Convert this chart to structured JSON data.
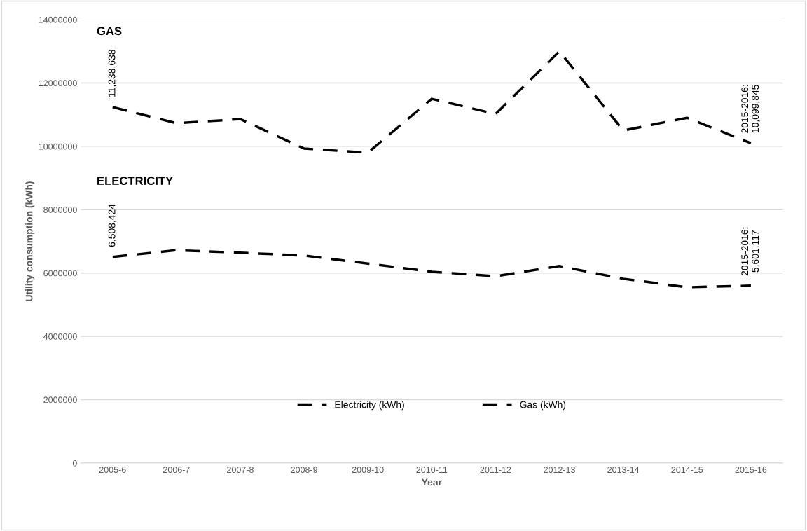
{
  "chart_data": {
    "type": "line",
    "xlabel": "Year",
    "ylabel": "Utility consumption (kWh)",
    "categories": [
      "2005-6",
      "2006-7",
      "2007-8",
      "2008-9",
      "2009-10",
      "2010-11",
      "2011-12",
      "2012-13",
      "2013-14",
      "2014-15",
      "2015-16"
    ],
    "series": [
      {
        "name": "Electricity (kWh)",
        "color": "#000000",
        "values": [
          6508424,
          6720000,
          6640000,
          6550000,
          6300000,
          6040000,
          5900000,
          6220000,
          5820000,
          5550000,
          5601117
        ]
      },
      {
        "name": "Gas (kWh)",
        "color": "#000000",
        "values": [
          11238638,
          10730000,
          10860000,
          9930000,
          9800000,
          11500000,
          11020000,
          13000000,
          10500000,
          10900000,
          10099845
        ]
      }
    ],
    "ylim": [
      0,
      14000000
    ],
    "yticks": [
      0,
      2000000,
      4000000,
      6000000,
      8000000,
      10000000,
      12000000,
      14000000
    ],
    "grid": "y",
    "legend": "bottom",
    "line_style": "dashed",
    "marker": "none",
    "annotations": [
      "ELECTRICITY",
      "GAS",
      {
        "text": "6,508,424",
        "x": "2005-6",
        "y": 6508424
      },
      {
        "text": "2015-2016:\n5,601,117",
        "x": "2015-16",
        "y": 5601117
      },
      {
        "text": "11,238,638",
        "x": "2005-6",
        "y": 11238638
      },
      {
        "text": "2015-2016:\n10,099,845",
        "x": "2015-16",
        "y": 10099845
      }
    ]
  }
}
